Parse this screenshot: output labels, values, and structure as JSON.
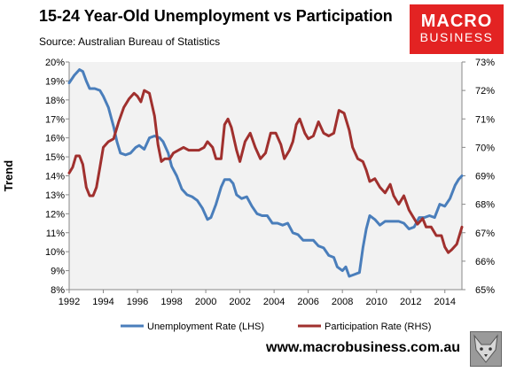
{
  "title": "15-24 Year-Old Unemployment vs Participation",
  "subtitle": "Source: Australian Bureau of Statistics",
  "logo": {
    "line1": "MACRO",
    "line2": "BUSINESS"
  },
  "website": "www.macrobusiness.com.au",
  "colors": {
    "unemployment": "#4a7ebb",
    "participation": "#a0302e",
    "logo_bg": "#e32323",
    "plot_bg": "#f2f2f2"
  },
  "chart_data": {
    "type": "line",
    "title": "15-24 Year-Old Unemployment vs Participation",
    "ylabel": "Trend",
    "xlim": [
      1992,
      2015
    ],
    "ylim_left": [
      8,
      20
    ],
    "ylim_right": [
      65,
      73
    ],
    "x_ticks": [
      "1992",
      "1994",
      "1996",
      "1998",
      "2000",
      "2002",
      "2004",
      "2006",
      "2008",
      "2010",
      "2012",
      "2014"
    ],
    "y_left_ticks": [
      "8%",
      "9%",
      "10%",
      "11%",
      "12%",
      "13%",
      "14%",
      "15%",
      "16%",
      "17%",
      "18%",
      "19%",
      "20%"
    ],
    "y_right_ticks": [
      "65%",
      "66%",
      "67%",
      "68%",
      "69%",
      "70%",
      "71%",
      "72%",
      "73%"
    ],
    "legend_position": "bottom",
    "grid": false,
    "series": [
      {
        "name": "Unemployment Rate (LHS)",
        "axis": "left",
        "color": "#4a7ebb",
        "points": [
          [
            1992.0,
            18.9
          ],
          [
            1992.3,
            19.3
          ],
          [
            1992.6,
            19.6
          ],
          [
            1992.8,
            19.5
          ],
          [
            1993.0,
            19.0
          ],
          [
            1993.2,
            18.6
          ],
          [
            1993.5,
            18.6
          ],
          [
            1993.8,
            18.5
          ],
          [
            1994.0,
            18.2
          ],
          [
            1994.3,
            17.6
          ],
          [
            1994.6,
            16.6
          ],
          [
            1994.8,
            15.8
          ],
          [
            1995.0,
            15.2
          ],
          [
            1995.3,
            15.1
          ],
          [
            1995.6,
            15.2
          ],
          [
            1995.9,
            15.5
          ],
          [
            1996.1,
            15.6
          ],
          [
            1996.4,
            15.4
          ],
          [
            1996.7,
            16.0
          ],
          [
            1997.0,
            16.1
          ],
          [
            1997.3,
            16.0
          ],
          [
            1997.5,
            15.8
          ],
          [
            1997.8,
            15.2
          ],
          [
            1998.0,
            14.5
          ],
          [
            1998.3,
            14.0
          ],
          [
            1998.6,
            13.3
          ],
          [
            1998.9,
            13.0
          ],
          [
            1999.2,
            12.9
          ],
          [
            1999.5,
            12.7
          ],
          [
            1999.8,
            12.3
          ],
          [
            2000.1,
            11.7
          ],
          [
            2000.3,
            11.8
          ],
          [
            2000.6,
            12.5
          ],
          [
            2000.9,
            13.4
          ],
          [
            2001.1,
            13.8
          ],
          [
            2001.4,
            13.8
          ],
          [
            2001.6,
            13.6
          ],
          [
            2001.8,
            13.0
          ],
          [
            2002.1,
            12.8
          ],
          [
            2002.4,
            12.9
          ],
          [
            2002.7,
            12.4
          ],
          [
            2003.0,
            12.0
          ],
          [
            2003.3,
            11.9
          ],
          [
            2003.6,
            11.9
          ],
          [
            2003.9,
            11.5
          ],
          [
            2004.2,
            11.5
          ],
          [
            2004.5,
            11.4
          ],
          [
            2004.8,
            11.5
          ],
          [
            2005.1,
            11.0
          ],
          [
            2005.4,
            10.9
          ],
          [
            2005.7,
            10.6
          ],
          [
            2006.0,
            10.6
          ],
          [
            2006.3,
            10.6
          ],
          [
            2006.6,
            10.3
          ],
          [
            2006.9,
            10.2
          ],
          [
            2007.2,
            9.8
          ],
          [
            2007.5,
            9.7
          ],
          [
            2007.7,
            9.2
          ],
          [
            2008.0,
            9.0
          ],
          [
            2008.2,
            9.2
          ],
          [
            2008.4,
            8.7
          ],
          [
            2008.7,
            8.8
          ],
          [
            2009.0,
            8.9
          ],
          [
            2009.2,
            10.2
          ],
          [
            2009.4,
            11.2
          ],
          [
            2009.6,
            11.9
          ],
          [
            2009.9,
            11.7
          ],
          [
            2010.2,
            11.4
          ],
          [
            2010.5,
            11.6
          ],
          [
            2010.9,
            11.6
          ],
          [
            2011.3,
            11.6
          ],
          [
            2011.6,
            11.5
          ],
          [
            2011.9,
            11.2
          ],
          [
            2012.2,
            11.3
          ],
          [
            2012.5,
            11.8
          ],
          [
            2012.8,
            11.8
          ],
          [
            2013.1,
            11.9
          ],
          [
            2013.4,
            11.8
          ],
          [
            2013.7,
            12.5
          ],
          [
            2014.0,
            12.4
          ],
          [
            2014.3,
            12.8
          ],
          [
            2014.6,
            13.5
          ],
          [
            2014.8,
            13.8
          ],
          [
            2015.0,
            14.0
          ]
        ]
      },
      {
        "name": "Participation Rate (RHS)",
        "axis": "right",
        "color": "#a0302e",
        "points": [
          [
            1992.0,
            69.1
          ],
          [
            1992.2,
            69.3
          ],
          [
            1992.4,
            69.7
          ],
          [
            1992.6,
            69.7
          ],
          [
            1992.8,
            69.4
          ],
          [
            1993.0,
            68.6
          ],
          [
            1993.2,
            68.3
          ],
          [
            1993.4,
            68.3
          ],
          [
            1993.6,
            68.6
          ],
          [
            1993.8,
            69.3
          ],
          [
            1994.0,
            70.0
          ],
          [
            1994.3,
            70.2
          ],
          [
            1994.6,
            70.3
          ],
          [
            1994.9,
            70.9
          ],
          [
            1995.2,
            71.4
          ],
          [
            1995.5,
            71.7
          ],
          [
            1995.8,
            71.9
          ],
          [
            1996.0,
            71.8
          ],
          [
            1996.2,
            71.6
          ],
          [
            1996.4,
            72.0
          ],
          [
            1996.7,
            71.9
          ],
          [
            1997.0,
            71.1
          ],
          [
            1997.2,
            70.1
          ],
          [
            1997.4,
            69.5
          ],
          [
            1997.6,
            69.6
          ],
          [
            1997.9,
            69.6
          ],
          [
            1998.1,
            69.8
          ],
          [
            1998.4,
            69.9
          ],
          [
            1998.7,
            70.0
          ],
          [
            1999.0,
            69.9
          ],
          [
            1999.3,
            69.9
          ],
          [
            1999.6,
            69.9
          ],
          [
            1999.9,
            70.0
          ],
          [
            2000.1,
            70.2
          ],
          [
            2000.4,
            70.0
          ],
          [
            2000.6,
            69.6
          ],
          [
            2000.9,
            69.6
          ],
          [
            2001.1,
            70.8
          ],
          [
            2001.3,
            71.0
          ],
          [
            2001.5,
            70.7
          ],
          [
            2001.8,
            69.9
          ],
          [
            2002.0,
            69.5
          ],
          [
            2002.3,
            70.2
          ],
          [
            2002.6,
            70.5
          ],
          [
            2002.9,
            70.0
          ],
          [
            2003.2,
            69.6
          ],
          [
            2003.5,
            69.8
          ],
          [
            2003.8,
            70.5
          ],
          [
            2004.1,
            70.5
          ],
          [
            2004.4,
            70.1
          ],
          [
            2004.6,
            69.6
          ],
          [
            2004.9,
            69.9
          ],
          [
            2005.1,
            70.2
          ],
          [
            2005.3,
            70.8
          ],
          [
            2005.5,
            71.0
          ],
          [
            2005.8,
            70.5
          ],
          [
            2006.0,
            70.3
          ],
          [
            2006.3,
            70.4
          ],
          [
            2006.6,
            70.9
          ],
          [
            2006.9,
            70.5
          ],
          [
            2007.2,
            70.4
          ],
          [
            2007.5,
            70.5
          ],
          [
            2007.8,
            71.3
          ],
          [
            2008.1,
            71.2
          ],
          [
            2008.4,
            70.6
          ],
          [
            2008.6,
            70.0
          ],
          [
            2008.9,
            69.6
          ],
          [
            2009.2,
            69.5
          ],
          [
            2009.4,
            69.2
          ],
          [
            2009.6,
            68.8
          ],
          [
            2009.9,
            68.9
          ],
          [
            2010.2,
            68.6
          ],
          [
            2010.5,
            68.4
          ],
          [
            2010.8,
            68.7
          ],
          [
            2011.0,
            68.3
          ],
          [
            2011.3,
            68.0
          ],
          [
            2011.6,
            68.3
          ],
          [
            2011.9,
            67.8
          ],
          [
            2012.1,
            67.6
          ],
          [
            2012.4,
            67.3
          ],
          [
            2012.7,
            67.5
          ],
          [
            2012.9,
            67.2
          ],
          [
            2013.2,
            67.2
          ],
          [
            2013.5,
            66.9
          ],
          [
            2013.8,
            66.9
          ],
          [
            2014.0,
            66.5
          ],
          [
            2014.2,
            66.3
          ],
          [
            2014.4,
            66.4
          ],
          [
            2014.7,
            66.6
          ],
          [
            2015.0,
            67.2
          ]
        ]
      }
    ]
  }
}
